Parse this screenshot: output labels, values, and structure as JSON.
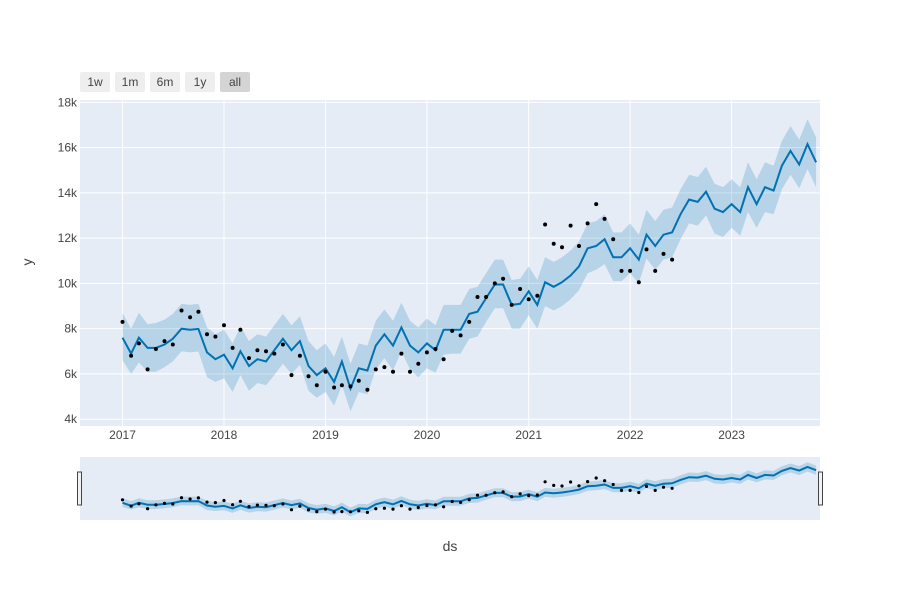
{
  "range_selector": {
    "buttons": [
      {
        "label": "1w",
        "active": false
      },
      {
        "label": "1m",
        "active": false
      },
      {
        "label": "6m",
        "active": false
      },
      {
        "label": "1y",
        "active": false
      },
      {
        "label": "all",
        "active": true
      }
    ]
  },
  "colors": {
    "plot_bg": "#e5ecf6",
    "grid": "#ffffff",
    "line": "#0072b2",
    "band": "rgba(0,114,178,0.2)",
    "points": "#000000",
    "button_bg": "#eeeeee",
    "button_active_bg": "#d4d4d4",
    "handle": "#f2f2f2",
    "text": "#444444"
  },
  "chart_data": {
    "type": "line",
    "xlabel": "ds",
    "ylabel": "y",
    "x_range": [
      "2016-08-01",
      "2023-11-15"
    ],
    "ylim": [
      3700,
      18100
    ],
    "yticks": [
      4000,
      6000,
      8000,
      10000,
      12000,
      14000,
      16000,
      18000
    ],
    "ytick_labels": [
      "4k",
      "6k",
      "8k",
      "10k",
      "12k",
      "14k",
      "16k",
      "18k"
    ],
    "xticks": [
      "2017-01-01",
      "2018-01-01",
      "2019-01-01",
      "2020-01-01",
      "2021-01-01",
      "2022-01-01",
      "2023-01-01"
    ],
    "xtick_labels": [
      "2017",
      "2018",
      "2019",
      "2020",
      "2021",
      "2022",
      "2023"
    ],
    "grid": true,
    "rangeslider": true,
    "forecast_dates": [
      "2017-01-01",
      "2017-02-01",
      "2017-03-01",
      "2017-04-01",
      "2017-05-01",
      "2017-06-01",
      "2017-07-01",
      "2017-08-01",
      "2017-09-01",
      "2017-10-01",
      "2017-11-01",
      "2017-12-01",
      "2018-01-01",
      "2018-02-01",
      "2018-03-01",
      "2018-04-01",
      "2018-05-01",
      "2018-06-01",
      "2018-07-01",
      "2018-08-01",
      "2018-09-01",
      "2018-10-01",
      "2018-11-01",
      "2018-12-01",
      "2019-01-01",
      "2019-02-01",
      "2019-03-01",
      "2019-04-01",
      "2019-05-01",
      "2019-06-01",
      "2019-07-01",
      "2019-08-01",
      "2019-09-01",
      "2019-10-01",
      "2019-11-01",
      "2019-12-01",
      "2020-01-01",
      "2020-02-01",
      "2020-03-01",
      "2020-04-01",
      "2020-05-01",
      "2020-06-01",
      "2020-07-01",
      "2020-08-01",
      "2020-09-01",
      "2020-10-01",
      "2020-11-01",
      "2020-12-01",
      "2021-01-01",
      "2021-02-01",
      "2021-03-01",
      "2021-04-01",
      "2021-05-01",
      "2021-06-01",
      "2021-07-01",
      "2021-08-01",
      "2021-09-01",
      "2021-10-01",
      "2021-11-01",
      "2021-12-01",
      "2022-01-01",
      "2022-02-01",
      "2022-03-01",
      "2022-04-01",
      "2022-05-01",
      "2022-06-01",
      "2022-07-01",
      "2022-08-01",
      "2022-09-01",
      "2022-10-01",
      "2022-11-01",
      "2022-12-01",
      "2023-01-01",
      "2023-02-01",
      "2023-03-01",
      "2023-04-01",
      "2023-05-01",
      "2023-06-01",
      "2023-07-01",
      "2023-08-01",
      "2023-09-01",
      "2023-10-01",
      "2023-11-01"
    ],
    "yhat": [
      7600,
      6900,
      7600,
      7150,
      7150,
      7300,
      7550,
      8000,
      7950,
      7990,
      6950,
      6650,
      6850,
      6250,
      7000,
      6350,
      6650,
      6550,
      7050,
      7550,
      7050,
      7450,
      6350,
      5950,
      6250,
      5650,
      6550,
      5350,
      6250,
      6150,
      7250,
      7750,
      7250,
      8050,
      7250,
      6950,
      7350,
      7050,
      7950,
      7950,
      7950,
      8650,
      8750,
      9350,
      9950,
      9950,
      9050,
      9100,
      9650,
      9050,
      10050,
      9850,
      10050,
      10350,
      10750,
      11550,
      11650,
      11950,
      11150,
      11150,
      11550,
      11050,
      12150,
      11650,
      12150,
      12250,
      13050,
      13700,
      13600,
      14050,
      13300,
      13150,
      13500,
      13150,
      14250,
      13500,
      14250,
      14100,
      15200,
      15850,
      15250,
      16150,
      15350
    ],
    "yhat_lower": [
      6600,
      6000,
      6500,
      6100,
      6100,
      6300,
      6550,
      7000,
      6950,
      6990,
      5850,
      5650,
      5800,
      5200,
      5950,
      5250,
      5600,
      5500,
      5950,
      6450,
      6000,
      6400,
      5250,
      4950,
      5200,
      4600,
      5500,
      4350,
      5200,
      5100,
      6200,
      6700,
      6150,
      7000,
      6200,
      5850,
      6250,
      6050,
      6850,
      6900,
      6900,
      7550,
      7650,
      8300,
      8900,
      8900,
      8000,
      8000,
      8600,
      8000,
      9000,
      8800,
      9000,
      9300,
      9700,
      10450,
      10600,
      10850,
      10100,
      10100,
      10450,
      10000,
      11100,
      10600,
      11050,
      11150,
      11950,
      12650,
      12550,
      13000,
      12200,
      12050,
      12450,
      12100,
      13150,
      12450,
      13150,
      13050,
      14150,
      14800,
      14200,
      15050,
      14250
    ],
    "yhat_upper": [
      8700,
      8000,
      8700,
      8200,
      8250,
      8400,
      8650,
      9100,
      9050,
      9100,
      8050,
      7750,
      7950,
      7350,
      8100,
      7450,
      7750,
      7650,
      8150,
      8650,
      8150,
      8550,
      7450,
      7050,
      7350,
      6750,
      7650,
      6450,
      7350,
      7250,
      8350,
      8850,
      8350,
      9150,
      8350,
      8050,
      8450,
      8150,
      9050,
      9050,
      9050,
      9750,
      9850,
      10450,
      11050,
      11050,
      10150,
      10200,
      10750,
      10150,
      11150,
      10950,
      11150,
      11450,
      11850,
      12650,
      12750,
      13050,
      12250,
      12250,
      12650,
      12150,
      13250,
      12750,
      13250,
      13350,
      14150,
      14800,
      14700,
      15150,
      14400,
      14250,
      14600,
      14250,
      15350,
      14600,
      15350,
      15200,
      16300,
      16950,
      16350,
      17250,
      16450
    ],
    "actual_dates": [
      "2017-01-01",
      "2017-02-01",
      "2017-03-01",
      "2017-04-01",
      "2017-05-01",
      "2017-06-01",
      "2017-07-01",
      "2017-08-01",
      "2017-09-01",
      "2017-10-01",
      "2017-11-01",
      "2017-12-01",
      "2018-01-01",
      "2018-02-01",
      "2018-03-01",
      "2018-04-01",
      "2018-05-01",
      "2018-06-01",
      "2018-07-01",
      "2018-08-01",
      "2018-09-01",
      "2018-10-01",
      "2018-11-01",
      "2018-12-01",
      "2019-01-01",
      "2019-02-01",
      "2019-03-01",
      "2019-04-01",
      "2019-05-01",
      "2019-06-01",
      "2019-07-01",
      "2019-08-01",
      "2019-09-01",
      "2019-10-01",
      "2019-11-01",
      "2019-12-01",
      "2020-01-01",
      "2020-02-01",
      "2020-03-01",
      "2020-04-01",
      "2020-05-01",
      "2020-06-01",
      "2020-07-01",
      "2020-08-01",
      "2020-09-01",
      "2020-10-01",
      "2020-11-01",
      "2020-12-01",
      "2021-01-01",
      "2021-02-01",
      "2021-03-01",
      "2021-04-01",
      "2021-05-01",
      "2021-06-01",
      "2021-07-01",
      "2021-08-01",
      "2021-09-01",
      "2021-10-01",
      "2021-11-01",
      "2021-12-01",
      "2022-01-01",
      "2022-02-01",
      "2022-03-01",
      "2022-04-01",
      "2022-05-01",
      "2022-06-01"
    ],
    "actual_values": [
      8300,
      6800,
      7350,
      6200,
      7100,
      7450,
      7300,
      8800,
      8500,
      8750,
      7750,
      7650,
      8150,
      7150,
      7950,
      6700,
      7050,
      7000,
      6900,
      7300,
      5950,
      6800,
      5900,
      5500,
      6100,
      5400,
      5500,
      5450,
      5700,
      5300,
      6200,
      6300,
      6100,
      6900,
      6100,
      6450,
      6950,
      7100,
      6650,
      7900,
      7700,
      8300,
      9400,
      9400,
      10000,
      10200,
      9050,
      9750,
      9300,
      9450,
      12600,
      11750,
      11600,
      12550,
      11650,
      12650,
      13500,
      12850,
      11950,
      10550,
      10550,
      10050,
      11500,
      10550,
      11300,
      11050
    ]
  }
}
